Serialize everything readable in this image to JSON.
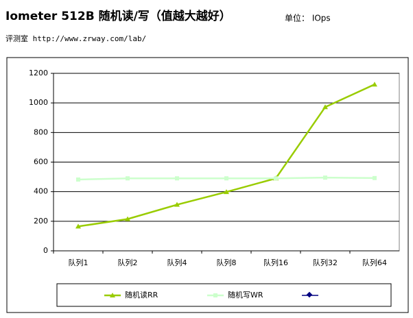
{
  "header": {
    "title": "Iometer 512B 随机读/写（值越大越好）",
    "unit": "单位： IOps",
    "subtitle": "评测室 http://www.zrway.com/lab/"
  },
  "chart_data": {
    "type": "line",
    "categories": [
      "队列1",
      "队列2",
      "队列4",
      "队列8",
      "队列16",
      "队列32",
      "队列64"
    ],
    "series": [
      {
        "name": "随机读RR",
        "color": "#99cc00",
        "values": [
          165,
          215,
          312,
          398,
          490,
          972,
          1125
        ]
      },
      {
        "name": "随机写WR",
        "color": "#ccffcc",
        "values": [
          482,
          490,
          490,
          490,
          490,
          495,
          492
        ]
      }
    ],
    "ylim": [
      0,
      1200
    ],
    "yticks": [
      0,
      200,
      400,
      600,
      800,
      1000,
      1200
    ],
    "grid": true
  }
}
